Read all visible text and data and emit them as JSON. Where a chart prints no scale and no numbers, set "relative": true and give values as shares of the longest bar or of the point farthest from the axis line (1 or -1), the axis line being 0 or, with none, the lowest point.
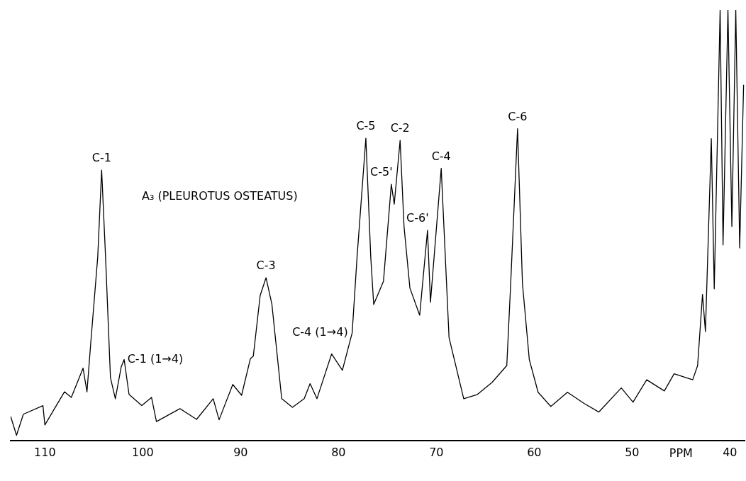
{
  "chart_data": {
    "type": "line",
    "relative": true,
    "xlabel": "PPM",
    "x": [
      113.5,
      112.9,
      112.2,
      110.2,
      110,
      108.0,
      107.3,
      106.1,
      105.7,
      105.3,
      104.6,
      104.2,
      103.8,
      103.3,
      102.8,
      102.2,
      101.9,
      101.4,
      100.1,
      99.1,
      98.6,
      96.2,
      94.5,
      92.8,
      92.2,
      90.8,
      89.9,
      89.0,
      88.7,
      88.0,
      87.4,
      86.8,
      85.8,
      84.7,
      83.5,
      82.9,
      82.2,
      80.7,
      79.6,
      78.6,
      78.1,
      77.2,
      76.7,
      76.4,
      75.4,
      74.6,
      74.3,
      73.7,
      73.3,
      72.7,
      71.7,
      70.9,
      70.6,
      69.5,
      68.7,
      67.2,
      65.8,
      64.3,
      62.8,
      62.4,
      61.7,
      61.2,
      60.5,
      59.6,
      58.3,
      56.6,
      54.9,
      53.4,
      51.1,
      49.9,
      48.5,
      46.7,
      45.7,
      43.8,
      43.3,
      42.8,
      42.5,
      41.9,
      41.6,
      41.0,
      40.7,
      40.2,
      39.8,
      39.4,
      39.0,
      38.6
    ],
    "series": [
      {
        "color": "#000000",
        "values": [
          0.056,
          0.012,
          0.061,
          0.081,
          0.036,
          0.113,
          0.1,
          0.168,
          0.113,
          0.23,
          0.426,
          0.628,
          0.426,
          0.146,
          0.097,
          0.171,
          0.188,
          0.107,
          0.081,
          0.1,
          0.044,
          0.074,
          0.049,
          0.097,
          0.048,
          0.13,
          0.105,
          0.19,
          0.196,
          0.337,
          0.378,
          0.316,
          0.097,
          0.077,
          0.097,
          0.132,
          0.097,
          0.201,
          0.163,
          0.25,
          0.426,
          0.702,
          0.426,
          0.316,
          0.37,
          0.595,
          0.549,
          0.697,
          0.497,
          0.354,
          0.291,
          0.488,
          0.321,
          0.632,
          0.239,
          0.097,
          0.107,
          0.135,
          0.174,
          0.365,
          0.724,
          0.365,
          0.188,
          0.112,
          0.079,
          0.112,
          0.086,
          0.066,
          0.122,
          0.089,
          0.141,
          0.115,
          0.155,
          0.141,
          0.174,
          0.339,
          0.253,
          0.701,
          0.352,
          1,
          0.454,
          1,
          0.497,
          1,
          0.447,
          0.826
        ]
      }
    ],
    "xlim": [
      113.5,
      38.5
    ],
    "xticks": [
      110,
      100,
      90,
      80,
      70,
      60,
      50,
      40
    ],
    "grid": false,
    "legend": false,
    "marker": "none",
    "line_style": "solid",
    "annotations": [
      "A₃ (PLEUROTUS OSTEATUS)",
      {
        "text": "C-1",
        "x": 104.2,
        "y": 0.628
      },
      {
        "text": "C-1 (1→4)",
        "x": 102.0,
        "y": 0.188
      },
      {
        "text": "C-3",
        "x": 87.4,
        "y": 0.378
      },
      {
        "text": "C-4 (1→4)",
        "x": 78.6,
        "y": 0.25
      },
      {
        "text": "C-5",
        "x": 77.2,
        "y": 0.702
      },
      {
        "text": "C-5'",
        "x": 74.6,
        "y": 0.595
      },
      {
        "text": "C-2",
        "x": 73.7,
        "y": 0.697
      },
      {
        "text": "C-6'",
        "x": 70.9,
        "y": 0.488
      },
      {
        "text": "C-4",
        "x": 69.5,
        "y": 0.632
      },
      {
        "text": "C-6",
        "x": 61.7,
        "y": 0.724
      }
    ]
  }
}
